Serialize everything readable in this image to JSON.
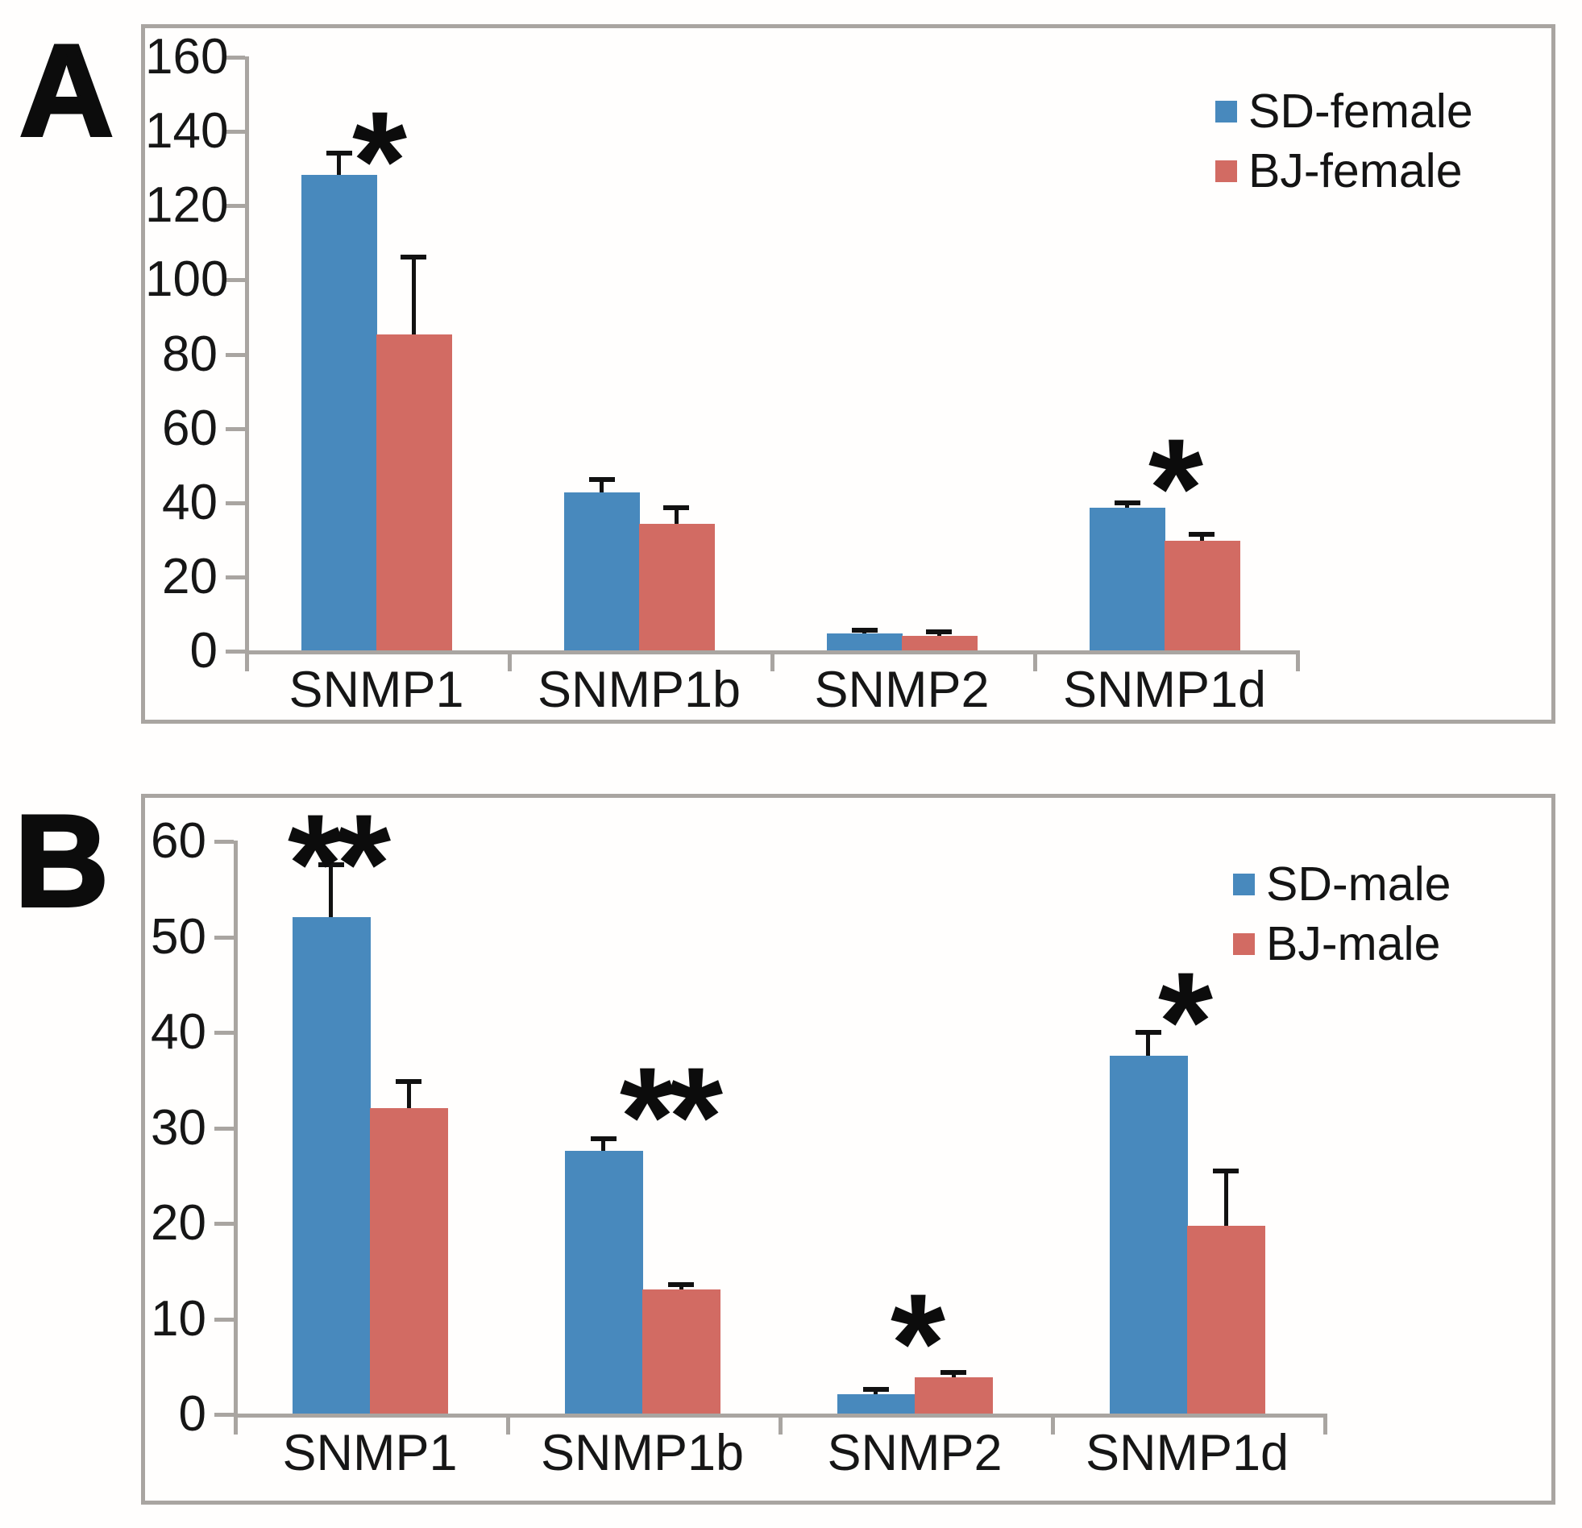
{
  "figure": {
    "panels": [
      {
        "label": "A"
      },
      {
        "label": "B"
      }
    ]
  },
  "chart_data": [
    {
      "id": "A",
      "type": "bar",
      "panel_label": "A",
      "categories": [
        "SNMP1",
        "SNMP1b",
        "SNMP2",
        "SNMP1d"
      ],
      "series": [
        {
          "name": "SD-female",
          "color": "#4889BD",
          "values": [
            128,
            42.5,
            4.5,
            38.5
          ],
          "errors_plus": [
            6,
            3.5,
            1,
            1.2
          ]
        },
        {
          "name": "BJ-female",
          "color": "#D26B63",
          "values": [
            85,
            34,
            4,
            29.5
          ],
          "errors_plus": [
            21,
            4.5,
            1,
            1.8
          ]
        }
      ],
      "ylim": [
        0,
        160
      ],
      "yticks": [
        0,
        20,
        40,
        60,
        80,
        100,
        120,
        140,
        160
      ],
      "xlabel": "",
      "ylabel": "",
      "grid": false,
      "legend_position": "top-right",
      "significance": [
        {
          "category": "SNMP1",
          "label": "*",
          "y": 138,
          "dx": 0
        },
        {
          "category": "SNMP1d",
          "label": "*",
          "y": 50,
          "dx": 10
        }
      ]
    },
    {
      "id": "B",
      "type": "bar",
      "panel_label": "B",
      "categories": [
        "SNMP1",
        "SNMP1b",
        "SNMP2",
        "SNMP1d"
      ],
      "series": [
        {
          "name": "SD-male",
          "color": "#4889BD",
          "values": [
            52,
            27.5,
            2,
            37.5
          ],
          "errors_plus": [
            5.5,
            1.3,
            0.5,
            2.4
          ]
        },
        {
          "name": "BJ-male",
          "color": "#D26B63",
          "values": [
            32,
            13,
            3.8,
            19.7
          ],
          "errors_plus": [
            2.8,
            0.5,
            0.5,
            5.7
          ]
        }
      ],
      "ylim": [
        0,
        60
      ],
      "yticks": [
        0,
        10,
        20,
        30,
        40,
        50,
        60
      ],
      "xlabel": "",
      "ylabel": "",
      "grid": false,
      "legend_position": "top-right",
      "significance": [
        {
          "category": "SNMP1",
          "label": "**",
          "y": 60,
          "dx": -42
        },
        {
          "category": "SNMP1b",
          "label": "**",
          "y": 33.5,
          "dx": 32
        },
        {
          "category": "SNMP2",
          "label": "*",
          "y": 9.8,
          "dx": 0
        },
        {
          "category": "SNMP1d",
          "label": "*",
          "y": 43.5,
          "dx": -6
        }
      ]
    }
  ]
}
